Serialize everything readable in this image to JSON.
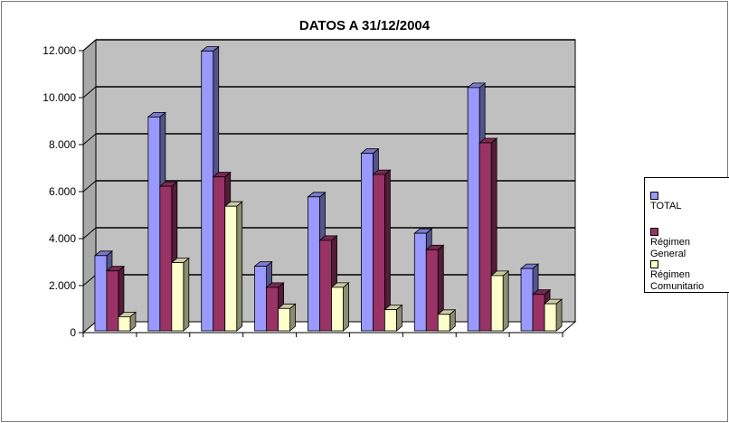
{
  "chart_data": {
    "type": "bar",
    "title": "DATOS A 31/12/2004",
    "categories": [
      "",
      "",
      "",
      "",
      "",
      "",
      "",
      "",
      ""
    ],
    "series": [
      {
        "name": "TOTAL",
        "color": "#9999ff",
        "values": [
          3200,
          9100,
          11900,
          2750,
          5700,
          7550,
          4150,
          10350,
          2650
        ]
      },
      {
        "name": "Régimen General",
        "color": "#993366",
        "values": [
          2550,
          6150,
          6550,
          1850,
          3850,
          6650,
          3450,
          8000,
          1550
        ]
      },
      {
        "name": "Régimen Comunitario",
        "color": "#ffffcc",
        "values": [
          600,
          2900,
          5300,
          950,
          1850,
          900,
          700,
          2350,
          1150
        ]
      }
    ],
    "ylim": [
      0,
      12000
    ],
    "yticks": [
      {
        "value": 0,
        "label": "0"
      },
      {
        "value": 2000,
        "label": "2.000"
      },
      {
        "value": 4000,
        "label": "4.000"
      },
      {
        "value": 6000,
        "label": "6.000"
      },
      {
        "value": 8000,
        "label": "8.000"
      },
      {
        "value": 10000,
        "label": "10.000"
      },
      {
        "value": 12000,
        "label": "12.000"
      }
    ],
    "grid": true,
    "legend_position": "right",
    "plot_background": "#c0c0c0"
  }
}
